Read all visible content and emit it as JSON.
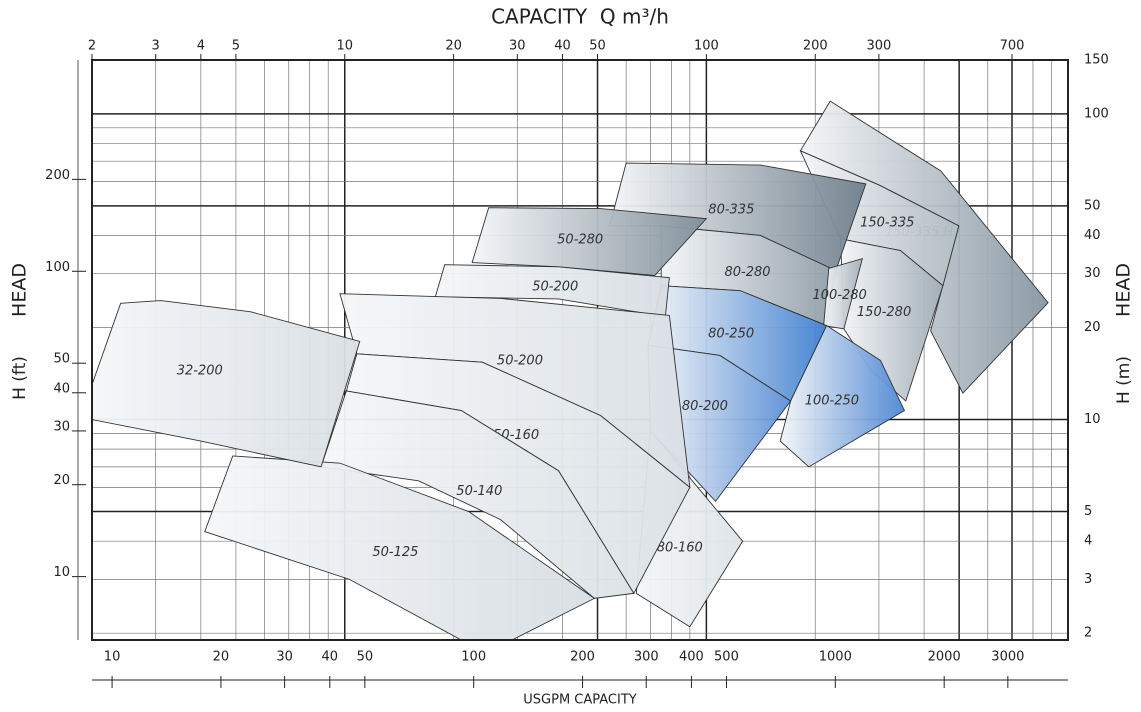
{
  "chart_data": {
    "type": "region",
    "title": "CAPACITY  Q m³/h",
    "xlabel": "USGPM CAPACITY",
    "ylabel": "HEAD",
    "ylabel_unit": "H (ft)",
    "y2label": "HEAD",
    "y2label_unit": "H (m)",
    "xscale": "log",
    "yscale": "log",
    "xlim": [
      2,
      1000
    ],
    "xticks": [
      2,
      3,
      4,
      5,
      10,
      20,
      30,
      40,
      50,
      100,
      200,
      300,
      700
    ],
    "x2lim": [
      8.8,
      4400
    ],
    "x2ticks": [
      10,
      20,
      30,
      40,
      50,
      100,
      200,
      300,
      400,
      500,
      1000,
      2000,
      3000
    ],
    "ylim": [
      6.2,
      492
    ],
    "yticks": [
      10,
      20,
      30,
      40,
      50,
      100,
      200
    ],
    "y2lim": [
      1.9,
      150
    ],
    "y2ticks": [
      2,
      3,
      4,
      5,
      10,
      20,
      30,
      40,
      50,
      100,
      150
    ],
    "grid": true,
    "xgrid": [
      3,
      4,
      5,
      6,
      7,
      8,
      9,
      20,
      30,
      40,
      60,
      70,
      80,
      90,
      200,
      300,
      400,
      600,
      800,
      900
    ],
    "xgrid_major": [
      10,
      50,
      100,
      500,
      700
    ],
    "ygrid": [
      2,
      3,
      4,
      6,
      7,
      8,
      9,
      20,
      30,
      40,
      60,
      70,
      80,
      90
    ],
    "ygrid_major": [
      5,
      10,
      50,
      100
    ],
    "series": [
      {
        "name": "150-335 H",
        "color": "#8796a2",
        "axis": "y2",
        "x": [
          220,
          445,
          881,
          512,
          417,
          499,
          303,
          182
        ],
        "y": [
          110,
          65,
          24.1,
          12.2,
          19.5,
          43,
          58.2,
          75.7
        ]
      },
      {
        "name": "150-335",
        "color": "#aeb9c1",
        "axis": "y2",
        "x": [
          182,
          303,
          499,
          451,
          344,
          235
        ],
        "y": [
          75.7,
          58.2,
          43,
          27.4,
          35.7,
          39
        ]
      },
      {
        "name": "150-280",
        "color": "#9eabb5",
        "axis": "y2",
        "x": [
          235,
          344,
          451,
          356,
          285,
          240
        ],
        "y": [
          39,
          35.7,
          27.4,
          11.5,
          14.5,
          19.8
        ]
      },
      {
        "name": "80-335",
        "color": "#6f7f8c",
        "axis": "y2",
        "x": [
          60,
          141,
          276,
          228,
          141,
          75,
          54
        ],
        "y": [
          69,
          68,
          59,
          30.7,
          40,
          43,
          43
        ]
      },
      {
        "name": "80-280",
        "color": "#8e9ca7",
        "axis": "y2",
        "x": [
          75,
          141,
          228,
          215,
          124,
          75
        ],
        "y": [
          43,
          40,
          30.7,
          20.3,
          26.4,
          27.4
        ]
      },
      {
        "name": "100-280",
        "color": "#a3afb8",
        "axis": "y2",
        "x": [
          218,
          270,
          240,
          211
        ],
        "y": [
          31.2,
          33.6,
          19.8,
          20.3
        ]
      },
      {
        "name": "80-250",
        "color": "#3f7fd0",
        "axis": "y2",
        "x": [
          75,
          124,
          215,
          171,
          109,
          69
        ],
        "y": [
          27.4,
          26.4,
          20.3,
          11.5,
          16.2,
          17.5
        ]
      },
      {
        "name": "100-250",
        "color": "#4d86d3",
        "axis": "y2",
        "x": [
          215,
          303,
          353,
          192,
          160,
          171
        ],
        "y": [
          20.3,
          15.6,
          10.7,
          7,
          8.5,
          11.5
        ]
      },
      {
        "name": "80-200",
        "color": "#5b8fd6",
        "axis": "y2",
        "x": [
          69,
          109,
          171,
          106,
          70
        ],
        "y": [
          17.5,
          16.2,
          11.5,
          5.4,
          9.2
        ]
      },
      {
        "name": "80-160",
        "color": "#dde3e7",
        "axis": "y2",
        "x": [
          70,
          126,
          90,
          64
        ],
        "y": [
          9.2,
          4.0,
          2.1,
          2.7
        ]
      },
      {
        "name": "50-280",
        "color": "#7f8e99",
        "axis": "y2",
        "x": [
          25,
          51,
          100,
          72,
          39,
          22.5
        ],
        "y": [
          49.3,
          49,
          45.4,
          29.6,
          31.6,
          32.6
        ]
      },
      {
        "name": "50-200",
        "color": "#d6dde2",
        "axis": "y2",
        "x": [
          18.9,
          39,
          79,
          77,
          39,
          17.8
        ],
        "y": [
          32.1,
          31.6,
          29.1,
          21.7,
          24.8,
          25.2
        ]
      },
      {
        "name": "50-200",
        "color": "#d9dfe4",
        "axis": "y2",
        "x": [
          9.7,
          27,
          79,
          90,
          51,
          24,
          10.8
        ],
        "y": [
          25.8,
          24.9,
          21.9,
          6,
          10.3,
          15.4,
          16.4
        ]
      },
      {
        "name": "50-160",
        "color": "#dbe1e5",
        "axis": "y2",
        "x": [
          10.8,
          24,
          51,
          90,
          63,
          39,
          21,
          10.1
        ],
        "y": [
          16.4,
          15.4,
          10.3,
          6,
          2.7,
          6.8,
          10.7,
          12.4
        ]
      },
      {
        "name": "50-140",
        "color": "#dce2e6",
        "axis": "y2",
        "x": [
          10.1,
          21,
          39,
          63,
          49,
          27,
          16,
          8.6
        ],
        "y": [
          12.4,
          10.7,
          6.8,
          2.7,
          2.6,
          4.7,
          6.3,
          7
        ]
      },
      {
        "name": "50-125",
        "color": "#d8dee3",
        "axis": "y2",
        "x": [
          4.9,
          9.7,
          22,
          49,
          29,
          21,
          10.3,
          4.1
        ],
        "y": [
          7.6,
          7.2,
          5,
          2.6,
          1.9,
          1.9,
          3.0,
          4.3
        ]
      },
      {
        "name": "32-200",
        "color": "#d9dfe4",
        "axis": "y2",
        "x": [
          2,
          2.4,
          3.1,
          5.5,
          11,
          8.6,
          4,
          2
        ],
        "y": [
          13,
          24,
          24.5,
          22.5,
          18,
          7,
          8.5,
          10
        ]
      }
    ]
  }
}
